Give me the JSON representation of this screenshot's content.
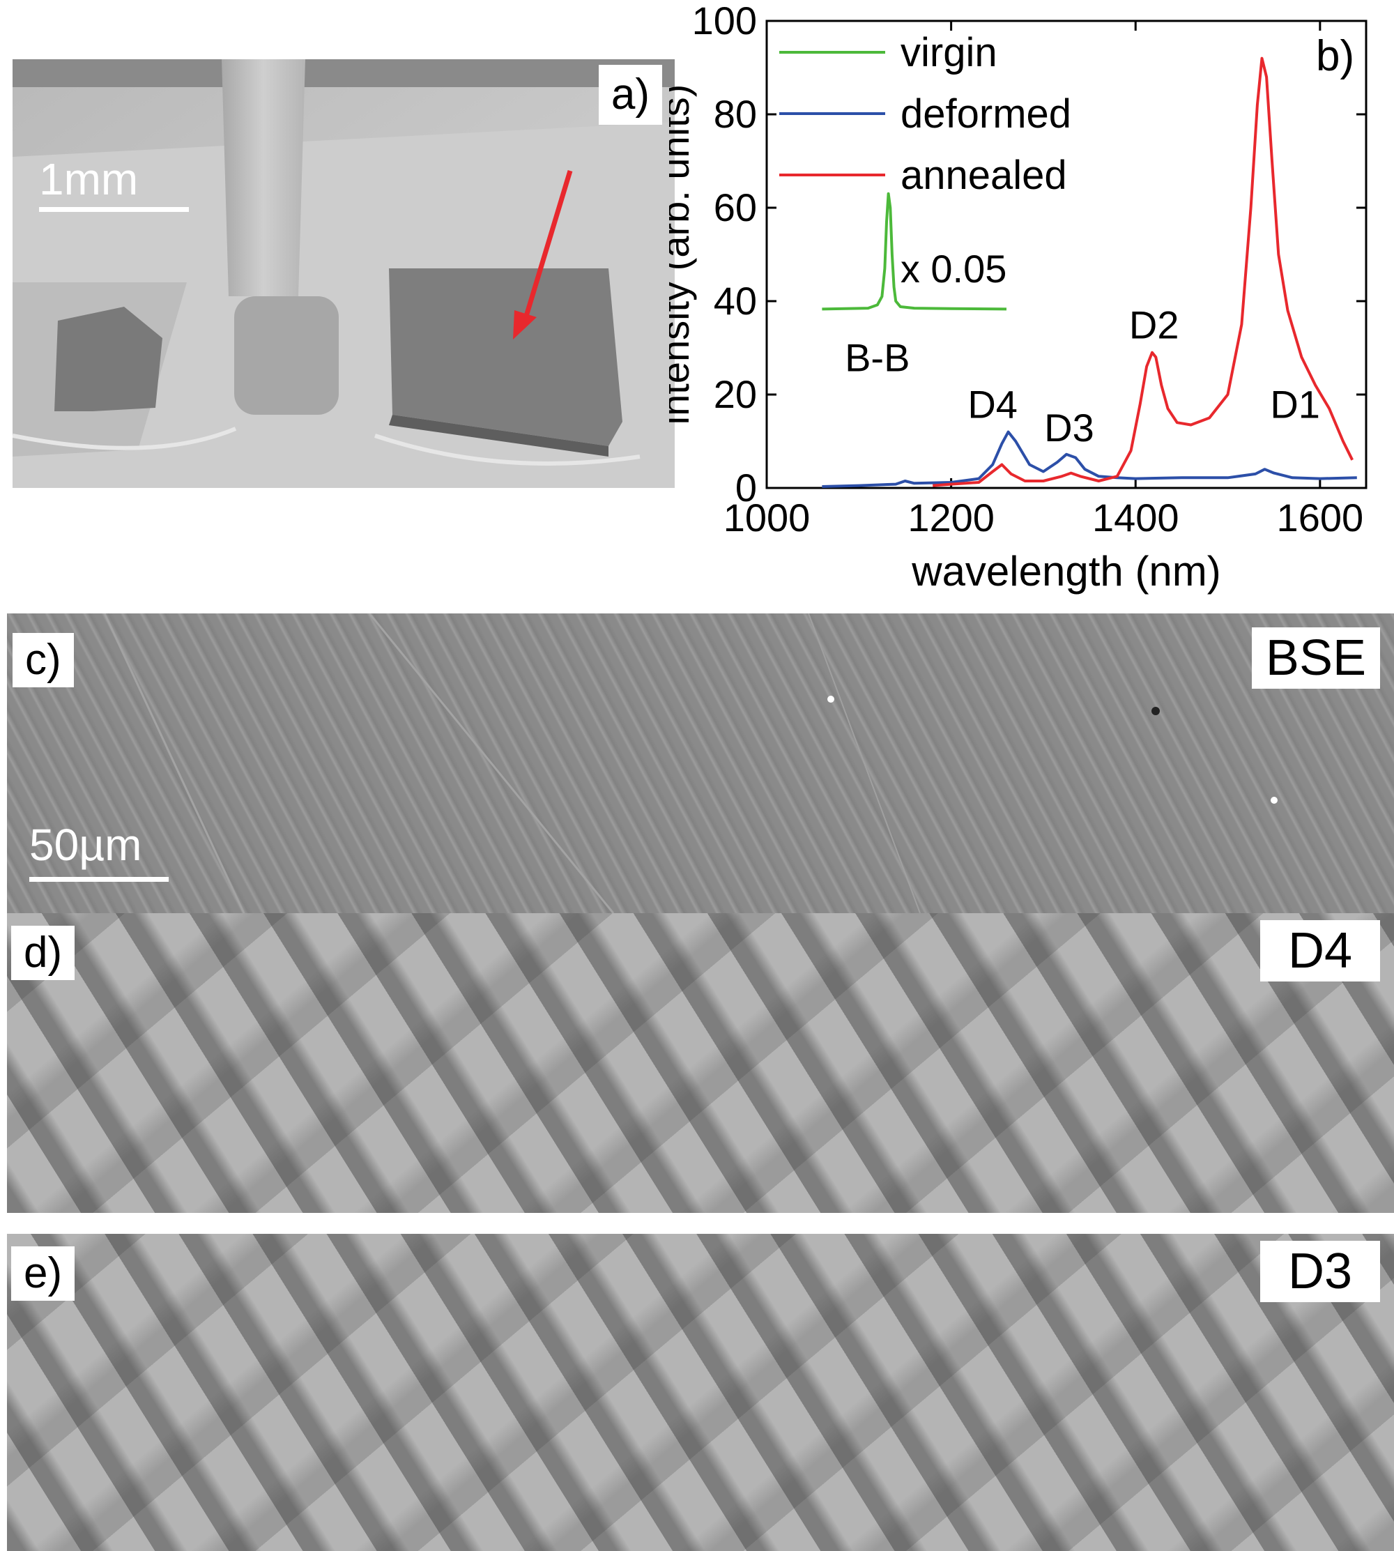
{
  "figure": {
    "panel_a": {
      "label": "a)",
      "scale_bar": "1mm"
    },
    "panel_b": {
      "label": "b)"
    },
    "panel_c": {
      "label": "c)",
      "tag": "BSE",
      "scale_bar": "50µm"
    },
    "panel_d": {
      "label": "d)",
      "tag": "D4"
    },
    "panel_e": {
      "label": "e)",
      "tag": "D3"
    }
  },
  "chart_data": {
    "type": "line",
    "title": "",
    "xlabel": "wavelength (nm)",
    "ylabel": "intensity (arb. units)",
    "xlim": [
      1000,
      1650
    ],
    "ylim": [
      0,
      100
    ],
    "xticks": [
      1000,
      1200,
      1400,
      1600
    ],
    "yticks": [
      0,
      20,
      40,
      60,
      80,
      100
    ],
    "legend_position": "top-left",
    "series": [
      {
        "name": "virgin",
        "color": "#4cb93a",
        "x": [
          1060,
          1110,
          1120,
          1125,
          1128,
          1130,
          1132,
          1134,
          1136,
          1138,
          1140,
          1145,
          1160,
          1200,
          1260
        ],
        "y": [
          0.3,
          0.5,
          1.2,
          3,
          9,
          19,
          25,
          22,
          12,
          5,
          2,
          0.8,
          0.5,
          0.4,
          0.3
        ],
        "display_offset_y": 38,
        "display_x_start": 1060,
        "scale_note": "x 0.05",
        "annotation": "B-B"
      },
      {
        "name": "deformed",
        "color": "#2c4fa8",
        "x": [
          1060,
          1100,
          1140,
          1150,
          1160,
          1200,
          1230,
          1245,
          1255,
          1262,
          1270,
          1285,
          1300,
          1315,
          1325,
          1335,
          1345,
          1360,
          1380,
          1400,
          1450,
          1500,
          1530,
          1540,
          1550,
          1570,
          1600,
          1640
        ],
        "y": [
          0.3,
          0.5,
          0.8,
          1.5,
          1.0,
          1.2,
          2.0,
          5.0,
          9.5,
          12.0,
          10.0,
          5.0,
          3.5,
          5.5,
          7.2,
          6.5,
          4.0,
          2.5,
          2.2,
          2.0,
          2.2,
          2.2,
          3.0,
          4.0,
          3.2,
          2.2,
          2.0,
          2.2
        ]
      },
      {
        "name": "annealed",
        "color": "#e8282d",
        "x": [
          1180,
          1200,
          1230,
          1245,
          1255,
          1265,
          1280,
          1300,
          1320,
          1330,
          1340,
          1360,
          1380,
          1395,
          1405,
          1412,
          1418,
          1422,
          1428,
          1435,
          1445,
          1460,
          1480,
          1500,
          1515,
          1525,
          1532,
          1537,
          1542,
          1548,
          1555,
          1565,
          1580,
          1595,
          1610,
          1625,
          1635
        ],
        "y": [
          0.5,
          0.8,
          1.2,
          3.5,
          5.0,
          3.0,
          1.5,
          1.5,
          2.5,
          3.2,
          2.5,
          1.5,
          2.5,
          8.0,
          18.0,
          26.0,
          29.0,
          28.0,
          22.0,
          17.0,
          14.0,
          13.5,
          15.0,
          20.0,
          35.0,
          60.0,
          82.0,
          92.0,
          88.0,
          70.0,
          50.0,
          38.0,
          28.0,
          22.0,
          17.0,
          10.0,
          6.0
        ]
      }
    ],
    "annotations": [
      {
        "text": "D4",
        "x": 1245,
        "y": 15
      },
      {
        "text": "D3",
        "x": 1328,
        "y": 10
      },
      {
        "text": "D2",
        "x": 1420,
        "y": 32
      },
      {
        "text": "D1",
        "x": 1573,
        "y": 15
      }
    ]
  }
}
